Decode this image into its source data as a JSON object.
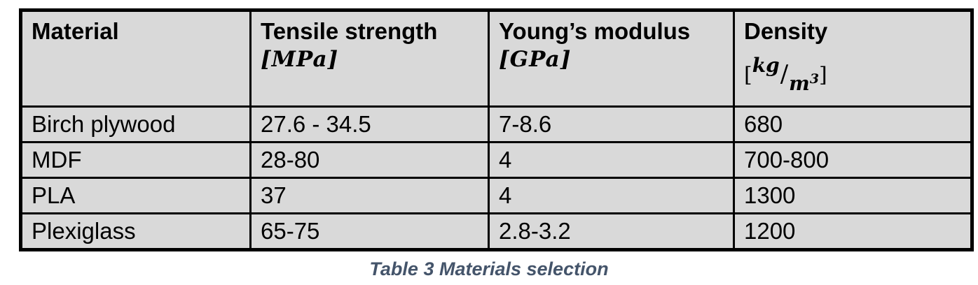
{
  "table": {
    "headers": {
      "material": {
        "label": "Material"
      },
      "tensile": {
        "label": "Tensile strength",
        "unit": "[MPa]"
      },
      "youngs": {
        "label": "Young’s modulus",
        "unit": "[GPa]"
      },
      "density": {
        "label": "Density",
        "unit_open": "[",
        "unit_numerator": "kg",
        "unit_slash": "/",
        "unit_denominator": "m",
        "unit_exponent": "3",
        "unit_close": "]"
      }
    },
    "rows": [
      {
        "material": "Birch plywood",
        "tensile": "27.6 - 34.5",
        "youngs": "7-8.6",
        "density": "680"
      },
      {
        "material": "MDF",
        "tensile": "28-80",
        "youngs": "4",
        "density": "700-800"
      },
      {
        "material": "PLA",
        "tensile": "37",
        "youngs": "4",
        "density": "1300"
      },
      {
        "material": "Plexiglass",
        "tensile": "65-75",
        "youngs": "2.8-3.2",
        "density": "1200"
      }
    ]
  },
  "caption": "Table 3 Materials selection",
  "colors": {
    "cell_background": "#d9d9d9",
    "border": "#000000",
    "caption_text": "#44546a"
  }
}
